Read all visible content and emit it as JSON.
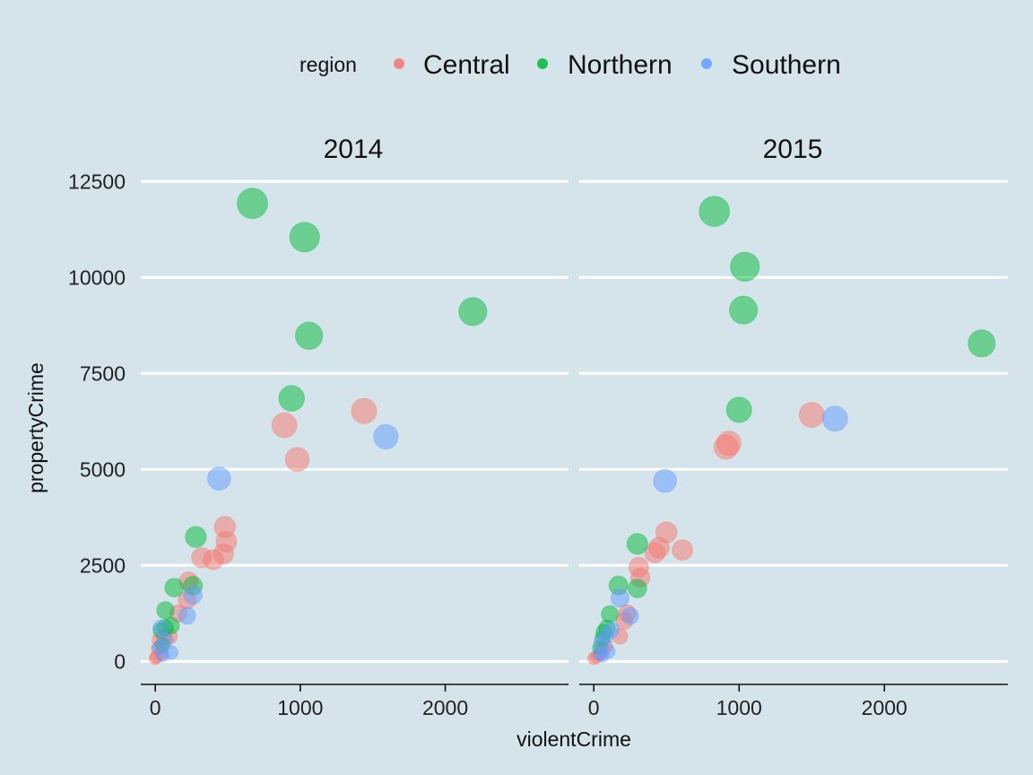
{
  "chart_data": {
    "type": "scatter",
    "title": "",
    "xlabel": "violentCrime",
    "ylabel": "propertyCrime",
    "facets": [
      "2014",
      "2015"
    ],
    "xlim": [
      -100,
      2850
    ],
    "ylim": [
      -600,
      12950
    ],
    "x_ticks": [
      "0",
      "1000",
      "2000"
    ],
    "y_ticks": [
      "0",
      "2500",
      "5000",
      "7500",
      "10000",
      "12500"
    ],
    "grid": "horizontal major, white",
    "legend": {
      "title": "region",
      "position": "top",
      "entries": [
        {
          "label": "Central",
          "color": "#F8766D"
        },
        {
          "label": "Northern",
          "color": "#00BA38"
        },
        {
          "label": "Southern",
          "color": "#619CFF"
        }
      ]
    },
    "size_variable": "propertyCrime",
    "series": [
      {
        "name": "Central",
        "color": "#F8766D",
        "points": {
          "2014": [
            [
              1440,
              6520
            ],
            [
              890,
              6150
            ],
            [
              980,
              5260
            ],
            [
              480,
              3500
            ],
            [
              490,
              3120
            ],
            [
              470,
              2800
            ],
            [
              400,
              2650
            ],
            [
              320,
              2700
            ],
            [
              230,
              2080
            ],
            [
              220,
              1600
            ],
            [
              160,
              1250
            ],
            [
              100,
              650
            ],
            [
              60,
              620
            ],
            [
              30,
              560
            ],
            [
              20,
              330
            ],
            [
              40,
              200
            ],
            [
              10,
              120
            ],
            [
              0,
              80
            ]
          ],
          "2015": [
            [
              1500,
              6420
            ],
            [
              930,
              5680
            ],
            [
              910,
              5580
            ],
            [
              610,
              2900
            ],
            [
              500,
              3360
            ],
            [
              450,
              2960
            ],
            [
              420,
              2830
            ],
            [
              310,
              2450
            ],
            [
              320,
              2180
            ],
            [
              230,
              1250
            ],
            [
              210,
              1050
            ],
            [
              180,
              650
            ],
            [
              80,
              400
            ],
            [
              60,
              300
            ],
            [
              40,
              180
            ],
            [
              20,
              120
            ],
            [
              0,
              80
            ]
          ]
        }
      },
      {
        "name": "Northern",
        "color": "#00BA38",
        "points": {
          "2014": [
            [
              670,
              11930
            ],
            [
              1030,
              11050
            ],
            [
              2190,
              9110
            ],
            [
              1060,
              8480
            ],
            [
              940,
              6850
            ],
            [
              280,
              3240
            ],
            [
              260,
              1970
            ],
            [
              130,
              1920
            ],
            [
              70,
              1330
            ],
            [
              110,
              930
            ],
            [
              70,
              880
            ],
            [
              40,
              800
            ],
            [
              50,
              420
            ]
          ],
          "2015": [
            [
              830,
              11720
            ],
            [
              1040,
              10280
            ],
            [
              1030,
              9150
            ],
            [
              2670,
              8280
            ],
            [
              1000,
              6550
            ],
            [
              300,
              3060
            ],
            [
              170,
              1980
            ],
            [
              300,
              1900
            ],
            [
              110,
              1230
            ],
            [
              90,
              870
            ],
            [
              70,
              760
            ],
            [
              60,
              600
            ],
            [
              40,
              350
            ]
          ]
        }
      },
      {
        "name": "Southern",
        "color": "#619CFF",
        "points": {
          "2014": [
            [
              1590,
              5850
            ],
            [
              440,
              4760
            ],
            [
              260,
              1730
            ],
            [
              220,
              1190
            ],
            [
              40,
              870
            ],
            [
              110,
              230
            ],
            [
              70,
              550
            ],
            [
              30,
              360
            ],
            [
              50,
              160
            ]
          ],
          "2015": [
            [
              1660,
              6320
            ],
            [
              490,
              4700
            ],
            [
              180,
              1650
            ],
            [
              250,
              1180
            ],
            [
              120,
              820
            ],
            [
              100,
              260
            ],
            [
              80,
              650
            ],
            [
              50,
              470
            ],
            [
              40,
              200
            ],
            [
              60,
              150
            ]
          ]
        }
      }
    ]
  }
}
